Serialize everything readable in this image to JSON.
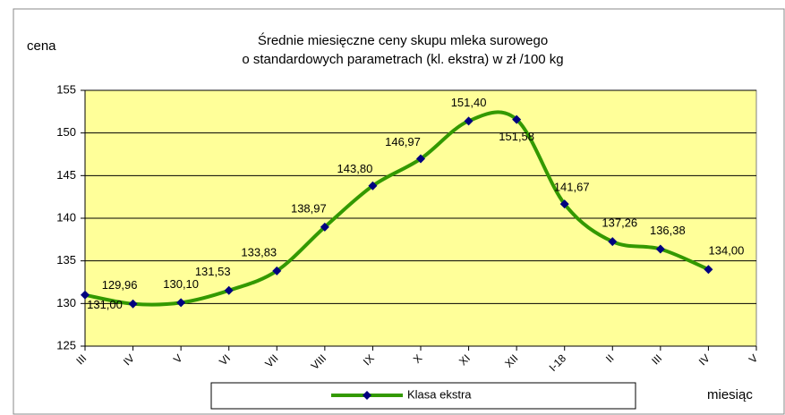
{
  "chart_data": {
    "type": "line",
    "title": "Średnie miesięczne ceny skupu mleka surowego",
    "subtitle": "o standardowych parametrach (kl. ekstra) w zł /100 kg",
    "y_axis_label": "cena",
    "x_axis_label": "miesiąc",
    "categories": [
      "III",
      "IV",
      "V",
      "VI",
      "VII",
      "VIII",
      "IX",
      "X",
      "XI",
      "XII",
      "I-18",
      "II",
      "III",
      "IV",
      "V"
    ],
    "series": [
      {
        "name": "Klasa ekstra",
        "color": "#339900",
        "values": [
          131.0,
          129.96,
          130.1,
          131.53,
          133.83,
          138.97,
          143.8,
          146.97,
          151.4,
          151.58,
          141.67,
          137.26,
          136.38,
          134.0,
          null
        ],
        "value_labels": [
          "131,00",
          "129,96",
          "130,10",
          "131,53",
          "133,83",
          "138,97",
          "143,80",
          "146,97",
          "151,40",
          "151,58",
          "141,67",
          "137,26",
          "136,38",
          "134,00",
          null
        ]
      }
    ],
    "ylim": [
      125,
      155
    ],
    "yticks": [
      125,
      130,
      135,
      140,
      145,
      150,
      155
    ],
    "grid": true,
    "legend": "bottom",
    "plot_background": "#ffff99"
  }
}
